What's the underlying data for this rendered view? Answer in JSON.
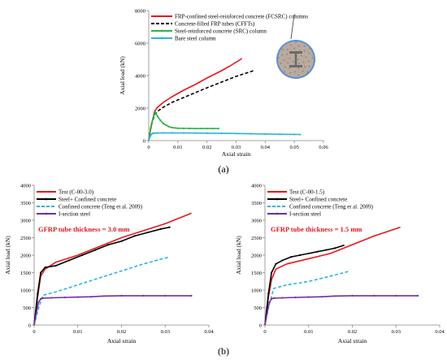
{
  "panel_labels": [
    "(a)",
    "(b)"
  ],
  "chart_data": [
    {
      "type": "line",
      "panel": "a",
      "xlabel": "Axial strain",
      "ylabel": "Axial load (kN)",
      "xlim": [
        0,
        0.06
      ],
      "ylim": [
        0,
        8000
      ],
      "xticks": [
        0,
        0.01,
        0.02,
        0.03,
        0.04,
        0.05,
        0.06
      ],
      "xtick_labels": [
        "0",
        "0.01",
        "0.02",
        "0.03",
        "0.04",
        "0.05",
        "0.06"
      ],
      "yticks": [
        0,
        2000,
        4000,
        6000,
        8000
      ],
      "ytick_labels": [
        "0",
        "2000",
        "4000",
        "6000",
        "8000"
      ],
      "grid": false,
      "legend_position": "top-left",
      "inset_image": "cross-section photo of steel I-section in concrete",
      "series": [
        {
          "name": "FRP-confined steel-reinforced concrete (FCSRC) columns",
          "color": "#e8161c",
          "dash": "solid",
          "marker": false,
          "x": [
            0,
            0.0008,
            0.0015,
            0.002,
            0.003,
            0.005,
            0.008,
            0.012,
            0.016,
            0.02,
            0.025,
            0.028,
            0.032
          ],
          "y": [
            0,
            900,
            1400,
            1800,
            2050,
            2350,
            2700,
            3100,
            3450,
            3850,
            4300,
            4600,
            5050
          ]
        },
        {
          "name": "Concrete-filled FRP tubes (CFFTs)",
          "color": "#000000",
          "dash": "dash",
          "marker": false,
          "x": [
            0,
            0.0008,
            0.0015,
            0.002,
            0.003,
            0.005,
            0.008,
            0.012,
            0.016,
            0.02,
            0.025,
            0.03,
            0.036
          ],
          "y": [
            0,
            900,
            1300,
            1600,
            1800,
            2050,
            2350,
            2650,
            2950,
            3250,
            3600,
            3950,
            4300
          ]
        },
        {
          "name": "Steel-reinforced concrete (SRC) column",
          "color": "#2db34a",
          "dash": "solid",
          "marker": true,
          "x": [
            0,
            0.0008,
            0.0015,
            0.0022,
            0.003,
            0.004,
            0.005,
            0.006,
            0.007,
            0.008,
            0.009,
            0.01,
            0.012,
            0.014,
            0.016,
            0.018,
            0.02,
            0.022,
            0.024
          ],
          "y": [
            0,
            800,
            1400,
            1750,
            1500,
            1250,
            1050,
            950,
            850,
            800,
            780,
            760,
            750,
            745,
            740,
            740,
            740,
            740,
            740
          ]
        },
        {
          "name": "Bare steel column",
          "color": "#29b5df",
          "dash": "solid",
          "marker": true,
          "x": [
            0,
            0.0005,
            0.001,
            0.0015,
            0.002,
            0.003,
            0.005,
            0.008,
            0.012,
            0.016,
            0.02,
            0.025,
            0.03,
            0.035,
            0.04,
            0.045,
            0.05,
            0.052
          ],
          "y": [
            0,
            250,
            400,
            450,
            460,
            465,
            470,
            470,
            470,
            465,
            455,
            445,
            435,
            420,
            405,
            390,
            380,
            375
          ]
        }
      ]
    },
    {
      "type": "line",
      "panel": "b-left",
      "annotation": "GFRP tube thickness  = 3.0 mm",
      "xlabel": "Axial strain",
      "ylabel": "Axial load (kN)",
      "xlim": [
        0,
        0.04
      ],
      "ylim": [
        0,
        4000
      ],
      "xticks": [
        0,
        0.01,
        0.02,
        0.03,
        0.04
      ],
      "xtick_labels": [
        "0",
        "0.01",
        "0.02",
        "0.03",
        "0.04"
      ],
      "yticks": [
        0,
        500,
        1000,
        1500,
        2000,
        2500,
        3000,
        3500,
        4000
      ],
      "ytick_labels": [
        "0",
        "500",
        "1000",
        "1500",
        "2000",
        "2500",
        "3000",
        "3500",
        "4000"
      ],
      "grid": false,
      "legend_position": "top-left",
      "series": [
        {
          "name": "Test (C-00-3.0)",
          "color": "#e8161c",
          "dash": "solid",
          "marker": false,
          "x": [
            0,
            0.0008,
            0.0015,
            0.0025,
            0.005,
            0.01,
            0.015,
            0.02,
            0.025,
            0.03,
            0.036
          ],
          "y": [
            0,
            800,
            1400,
            1600,
            1800,
            2000,
            2250,
            2500,
            2700,
            2900,
            3200
          ]
        },
        {
          "name": "Steel+ Confined concrete",
          "color": "#000000",
          "dash": "solid",
          "marker": true,
          "x": [
            0,
            0.0008,
            0.0015,
            0.0025,
            0.005,
            0.008,
            0.011,
            0.014,
            0.017,
            0.02,
            0.023,
            0.026,
            0.029,
            0.031
          ],
          "y": [
            0,
            900,
            1500,
            1650,
            1700,
            1850,
            2000,
            2150,
            2300,
            2400,
            2550,
            2650,
            2750,
            2800
          ]
        },
        {
          "name": "Confined concrete (Teng et al. 2009)",
          "color": "#29b5df",
          "dash": "dash",
          "marker": false,
          "x": [
            0,
            0.0008,
            0.002,
            0.005,
            0.01,
            0.015,
            0.02,
            0.025,
            0.031
          ],
          "y": [
            0,
            400,
            850,
            950,
            1150,
            1350,
            1550,
            1750,
            1950
          ]
        },
        {
          "name": "I-section steel",
          "color": "#7030a0",
          "dash": "solid",
          "marker": true,
          "x": [
            0,
            0.0005,
            0.001,
            0.0015,
            0.002,
            0.004,
            0.007,
            0.01,
            0.013,
            0.016,
            0.02,
            0.025,
            0.03,
            0.036
          ],
          "y": [
            0,
            350,
            650,
            750,
            770,
            780,
            790,
            800,
            810,
            830,
            840,
            840,
            840,
            840
          ]
        }
      ]
    },
    {
      "type": "line",
      "panel": "b-right",
      "annotation": "GFRP tube thickness  = 1.5 mm",
      "xlabel": "Axial strain",
      "ylabel": "Axial load (kN)",
      "xlim": [
        0,
        0.04
      ],
      "ylim": [
        0,
        4000
      ],
      "xticks": [
        0,
        0.01,
        0.02,
        0.03,
        0.04
      ],
      "xtick_labels": [
        "0",
        "0.01",
        "0.02",
        "0.03",
        "0.04"
      ],
      "yticks": [
        0,
        500,
        1000,
        1500,
        2000,
        2500,
        3000,
        3500,
        4000
      ],
      "ytick_labels": [
        "0",
        "500",
        "1000",
        "1500",
        "2000",
        "2500",
        "3000",
        "3500",
        "4000"
      ],
      "grid": false,
      "legend_position": "top-left",
      "series": [
        {
          "name": "Test (C-00-1.5)",
          "color": "#e8161c",
          "dash": "solid",
          "marker": false,
          "x": [
            0,
            0.0008,
            0.0015,
            0.0025,
            0.005,
            0.01,
            0.015,
            0.02,
            0.025,
            0.031
          ],
          "y": [
            0,
            800,
            1300,
            1600,
            1750,
            1900,
            2050,
            2300,
            2550,
            2800
          ]
        },
        {
          "name": "Steel+ Confined concrete",
          "color": "#000000",
          "dash": "solid",
          "marker": true,
          "x": [
            0,
            0.0008,
            0.0015,
            0.0025,
            0.004,
            0.006,
            0.008,
            0.01,
            0.012,
            0.014,
            0.016,
            0.018
          ],
          "y": [
            0,
            900,
            1500,
            1750,
            1850,
            1950,
            2000,
            2050,
            2100,
            2150,
            2200,
            2280
          ]
        },
        {
          "name": "Confined concrete (Teng et al. 2009)",
          "color": "#29b5df",
          "dash": "dash",
          "marker": false,
          "x": [
            0,
            0.0008,
            0.002,
            0.005,
            0.01,
            0.015,
            0.019
          ],
          "y": [
            0,
            500,
            1050,
            1150,
            1250,
            1400,
            1530
          ]
        },
        {
          "name": "I-section steel",
          "color": "#7030a0",
          "dash": "solid",
          "marker": true,
          "x": [
            0,
            0.0005,
            0.001,
            0.0015,
            0.002,
            0.004,
            0.007,
            0.01,
            0.013,
            0.016,
            0.02,
            0.025,
            0.03,
            0.035
          ],
          "y": [
            0,
            350,
            650,
            750,
            770,
            780,
            790,
            800,
            810,
            830,
            840,
            840,
            840,
            840
          ]
        }
      ]
    }
  ]
}
